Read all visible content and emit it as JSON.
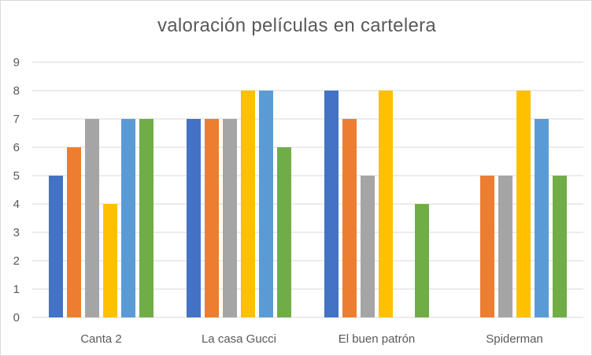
{
  "chart_data": {
    "type": "bar",
    "title": "valoración películas en cartelera",
    "categories": [
      "Canta 2",
      "La casa Gucci",
      "El buen patrón",
      "Spiderman"
    ],
    "series": [
      {
        "color": "#4472c4",
        "values": [
          5,
          7,
          8,
          null
        ]
      },
      {
        "color": "#ed7d31",
        "values": [
          6,
          7,
          7,
          5
        ]
      },
      {
        "color": "#a5a5a5",
        "values": [
          7,
          7,
          5,
          5
        ]
      },
      {
        "color": "#ffc000",
        "values": [
          4,
          8,
          8,
          8
        ]
      },
      {
        "color": "#5b9bd5",
        "values": [
          7,
          8,
          null,
          7
        ]
      },
      {
        "color": "#70ad47",
        "values": [
          7,
          6,
          4,
          5
        ]
      }
    ],
    "ylim": [
      0,
      9
    ],
    "yticks": [
      "0",
      "1",
      "2",
      "3",
      "4",
      "5",
      "6",
      "7",
      "8",
      "9"
    ],
    "xlabel": "",
    "ylabel": "",
    "grid": true,
    "legend": "none",
    "gridline_color": "#d9d9d9"
  }
}
